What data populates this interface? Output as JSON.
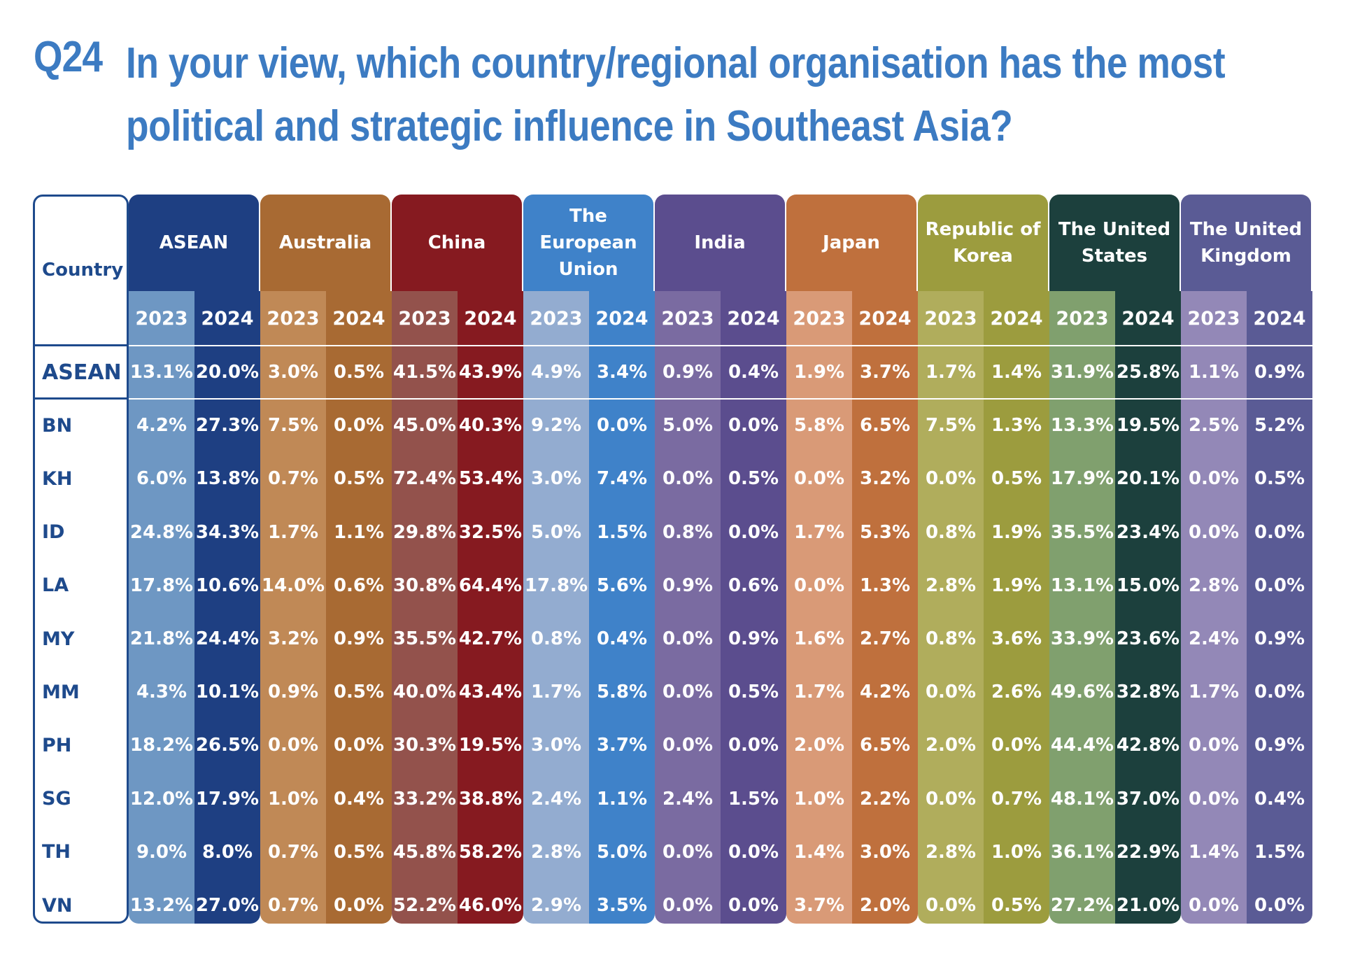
{
  "header": {
    "question_number": "Q24",
    "title_lines": [
      "In your view, which country/regional organisation has the most",
      "political and strategic influence in Southeast Asia?"
    ]
  },
  "chart_data": {
    "type": "table",
    "row_header_label": "Country",
    "years": [
      "2023",
      "2024"
    ],
    "groups": [
      {
        "name_lines": [
          "ASEAN"
        ],
        "color_2023": "#6e97c3",
        "color_2024": "#1e3f82",
        "color_head": "#1e3f82"
      },
      {
        "name_lines": [
          "Australia"
        ],
        "color_2023": "#c08956",
        "color_2024": "#a86a33",
        "color_head": "#a86a33"
      },
      {
        "name_lines": [
          "China"
        ],
        "color_2023": "#93524c",
        "color_2024": "#861a20",
        "color_head": "#861a20"
      },
      {
        "name_lines": [
          "The",
          "European",
          "Union"
        ],
        "color_2023": "#93acd0",
        "color_2024": "#3f82c9",
        "color_head": "#3f82c9"
      },
      {
        "name_lines": [
          "India"
        ],
        "color_2023": "#7a6ba1",
        "color_2024": "#5b4d8e",
        "color_head": "#5b4d8e"
      },
      {
        "name_lines": [
          "Japan"
        ],
        "color_2023": "#d99a77",
        "color_2024": "#bf703d",
        "color_head": "#bf703d"
      },
      {
        "name_lines": [
          "Republic of",
          "Korea"
        ],
        "color_2023": "#b0ad5c",
        "color_2024": "#9c9c3e",
        "color_head": "#9c9c3e"
      },
      {
        "name_lines": [
          "The United",
          "States"
        ],
        "color_2023": "#80a06e",
        "color_2024": "#1c403d",
        "color_head": "#1c403d"
      },
      {
        "name_lines": [
          "The United",
          "Kingdom"
        ],
        "color_2023": "#9388b7",
        "color_2024": "#5a5b95",
        "color_head": "#5a5b95"
      }
    ],
    "rows": [
      {
        "label": "ASEAN",
        "values": [
          "13.1%",
          "20.0%",
          "3.0%",
          "0.5%",
          "41.5%",
          "43.9%",
          "4.9%",
          "3.4%",
          "0.9%",
          "0.4%",
          "1.9%",
          "3.7%",
          "1.7%",
          "1.4%",
          "31.9%",
          "25.8%",
          "1.1%",
          "0.9%"
        ]
      },
      {
        "label": "BN",
        "values": [
          "4.2%",
          "27.3%",
          "7.5%",
          "0.0%",
          "45.0%",
          "40.3%",
          "9.2%",
          "0.0%",
          "5.0%",
          "0.0%",
          "5.8%",
          "6.5%",
          "7.5%",
          "1.3%",
          "13.3%",
          "19.5%",
          "2.5%",
          "5.2%"
        ]
      },
      {
        "label": "KH",
        "values": [
          "6.0%",
          "13.8%",
          "0.7%",
          "0.5%",
          "72.4%",
          "53.4%",
          "3.0%",
          "7.4%",
          "0.0%",
          "0.5%",
          "0.0%",
          "3.2%",
          "0.0%",
          "0.5%",
          "17.9%",
          "20.1%",
          "0.0%",
          "0.5%"
        ]
      },
      {
        "label": "ID",
        "values": [
          "24.8%",
          "34.3%",
          "1.7%",
          "1.1%",
          "29.8%",
          "32.5%",
          "5.0%",
          "1.5%",
          "0.8%",
          "0.0%",
          "1.7%",
          "5.3%",
          "0.8%",
          "1.9%",
          "35.5%",
          "23.4%",
          "0.0%",
          "0.0%"
        ]
      },
      {
        "label": "LA",
        "values": [
          "17.8%",
          "10.6%",
          "14.0%",
          "0.6%",
          "30.8%",
          "64.4%",
          "17.8%",
          "5.6%",
          "0.9%",
          "0.6%",
          "0.0%",
          "1.3%",
          "2.8%",
          "1.9%",
          "13.1%",
          "15.0%",
          "2.8%",
          "0.0%"
        ]
      },
      {
        "label": "MY",
        "values": [
          "21.8%",
          "24.4%",
          "3.2%",
          "0.9%",
          "35.5%",
          "42.7%",
          "0.8%",
          "0.4%",
          "0.0%",
          "0.9%",
          "1.6%",
          "2.7%",
          "0.8%",
          "3.6%",
          "33.9%",
          "23.6%",
          "2.4%",
          "0.9%"
        ]
      },
      {
        "label": "MM",
        "values": [
          "4.3%",
          "10.1%",
          "0.9%",
          "0.5%",
          "40.0%",
          "43.4%",
          "1.7%",
          "5.8%",
          "0.0%",
          "0.5%",
          "1.7%",
          "4.2%",
          "0.0%",
          "2.6%",
          "49.6%",
          "32.8%",
          "1.7%",
          "0.0%"
        ]
      },
      {
        "label": "PH",
        "values": [
          "18.2%",
          "26.5%",
          "0.0%",
          "0.0%",
          "30.3%",
          "19.5%",
          "3.0%",
          "3.7%",
          "0.0%",
          "0.0%",
          "2.0%",
          "6.5%",
          "2.0%",
          "0.0%",
          "44.4%",
          "42.8%",
          "0.0%",
          "0.9%"
        ]
      },
      {
        "label": "SG",
        "values": [
          "12.0%",
          "17.9%",
          "1.0%",
          "0.4%",
          "33.2%",
          "38.8%",
          "2.4%",
          "1.1%",
          "2.4%",
          "1.5%",
          "1.0%",
          "2.2%",
          "0.0%",
          "0.7%",
          "48.1%",
          "37.0%",
          "0.0%",
          "0.4%"
        ]
      },
      {
        "label": "TH",
        "values": [
          "9.0%",
          "8.0%",
          "0.7%",
          "0.5%",
          "45.8%",
          "58.2%",
          "2.8%",
          "5.0%",
          "0.0%",
          "0.0%",
          "1.4%",
          "3.0%",
          "2.8%",
          "1.0%",
          "36.1%",
          "22.9%",
          "1.4%",
          "1.5%"
        ]
      },
      {
        "label": "VN",
        "values": [
          "13.2%",
          "27.0%",
          "0.7%",
          "0.0%",
          "52.2%",
          "46.0%",
          "2.9%",
          "3.5%",
          "0.0%",
          "0.0%",
          "3.7%",
          "2.0%",
          "0.0%",
          "0.5%",
          "27.2%",
          "21.0%",
          "0.0%",
          "0.0%"
        ]
      }
    ]
  }
}
